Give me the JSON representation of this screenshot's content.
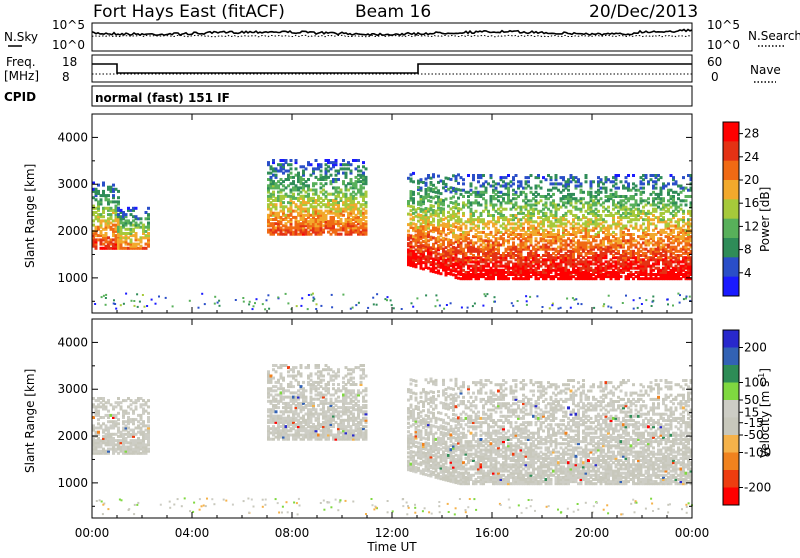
{
  "header": {
    "station": "Fort Hays East (fitACF)",
    "beam": "Beam 16",
    "date": "20/Dec/2013"
  },
  "aux": {
    "nsky_label": "N.Sky",
    "nsearch_label": "N.Search",
    "noise_ticks": [
      "10^5",
      "10^0"
    ],
    "freq_label_1": "Freq.",
    "freq_label_2": "[MHz]",
    "freq_ticks": [
      "18",
      "8"
    ],
    "nave_label": "Nave",
    "nave_ticks": [
      "60",
      "0"
    ],
    "cpid_label": "CPID",
    "cpid_text": "normal (fast) 151 IF"
  },
  "time_axis": {
    "ticks": [
      "00:00",
      "04:00",
      "08:00",
      "12:00",
      "16:00",
      "20:00",
      "00:00"
    ],
    "label": "Time UT"
  },
  "colors": {
    "power": [
      "#1a1aff",
      "#2a4ec8",
      "#2f8c58",
      "#58b05a",
      "#a6c93a",
      "#f2a92c",
      "#f06a14",
      "#e43214",
      "#ff0000"
    ],
    "velocity": [
      "#ff0000",
      "#ee3d10",
      "#f0821e",
      "#f5b24a",
      "#c8c8bc",
      "#cdcdc5",
      "#7fd840",
      "#2e8c56",
      "#3262b4",
      "#2828cc"
    ]
  },
  "chart_data": [
    {
      "type": "heatmap",
      "panel": "power",
      "ylabel": "Slant Range [km]",
      "xlabel": "",
      "yticks": [
        "1000",
        "2000",
        "3000",
        "4000"
      ],
      "ylim": [
        250,
        4500
      ],
      "xlim_hours": [
        0,
        24
      ],
      "colorbar_title": "Power [dB]",
      "colorbar_ticks": [
        "4",
        "8",
        "12",
        "16",
        "20",
        "24",
        "28"
      ],
      "colorbar_range": [
        0,
        30
      ],
      "echo_regions": [
        {
          "t_start": 0.0,
          "t_end": 1.0,
          "range_min": 1600,
          "range_max": 3000,
          "peak_power": 26
        },
        {
          "t_start": 1.0,
          "t_end": 2.3,
          "range_min": 1600,
          "range_max": 2500,
          "peak_power": 22
        },
        {
          "t_start": 7.0,
          "t_end": 10.9,
          "range_min": 1900,
          "range_max": 3500,
          "peak_power": 24
        },
        {
          "t_start": 12.6,
          "t_end": 24.0,
          "range_min": 950,
          "range_max": 3200,
          "peak_power": 30
        }
      ]
    },
    {
      "type": "heatmap",
      "panel": "velocity",
      "ylabel": "Slant Range [km]",
      "xlabel": "Time UT",
      "yticks": [
        "1000",
        "2000",
        "3000",
        "4000"
      ],
      "ylim": [
        250,
        4500
      ],
      "xlim_hours": [
        0,
        24
      ],
      "colorbar_title": "Velocity [m s^-1]",
      "colorbar_ticks": [
        "200",
        "100",
        "50",
        "15",
        "-15",
        "-50",
        "-100",
        "-200"
      ],
      "colorbar_range": [
        -250,
        250
      ],
      "echo_regions": [
        {
          "t_start": 0.0,
          "t_end": 2.3,
          "range_min": 1600,
          "range_max": 2800,
          "dominant_velocity": 0
        },
        {
          "t_start": 7.0,
          "t_end": 10.9,
          "range_min": 1900,
          "range_max": 3500,
          "dominant_velocity": 0
        },
        {
          "t_start": 12.6,
          "t_end": 24.0,
          "range_min": 950,
          "range_max": 3200,
          "dominant_velocity": 0
        }
      ]
    }
  ]
}
